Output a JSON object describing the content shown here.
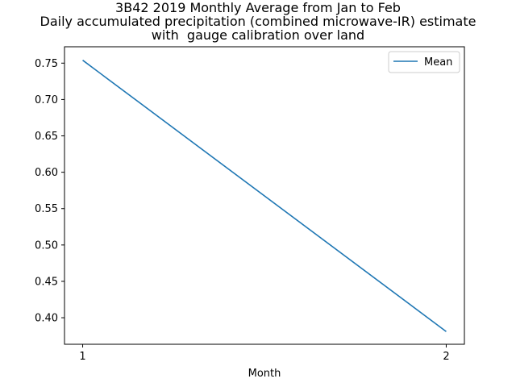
{
  "chart_data": {
    "type": "line",
    "title_lines": [
      "3B42 2019 Monthly Average from Jan to Feb",
      "Daily accumulated precipitation (combined microwave-IR) estimate",
      "with  gauge calibration over land"
    ],
    "xlabel": "Month",
    "ylabel": "",
    "x": [
      1,
      2
    ],
    "x_ticks": [
      "1",
      "2"
    ],
    "y_ticks": [
      "0.40",
      "0.45",
      "0.50",
      "0.55",
      "0.60",
      "0.65",
      "0.70",
      "0.75"
    ],
    "y_tick_values": [
      0.4,
      0.45,
      0.5,
      0.55,
      0.6,
      0.65,
      0.7,
      0.75
    ],
    "xlim": [
      0.95,
      2.05
    ],
    "ylim": [
      0.3635,
      0.7725
    ],
    "series": [
      {
        "name": "Mean",
        "values": [
          0.754,
          0.381
        ],
        "color": "#1f77b4"
      }
    ],
    "legend": {
      "position": "top-right"
    },
    "grid": false
  }
}
